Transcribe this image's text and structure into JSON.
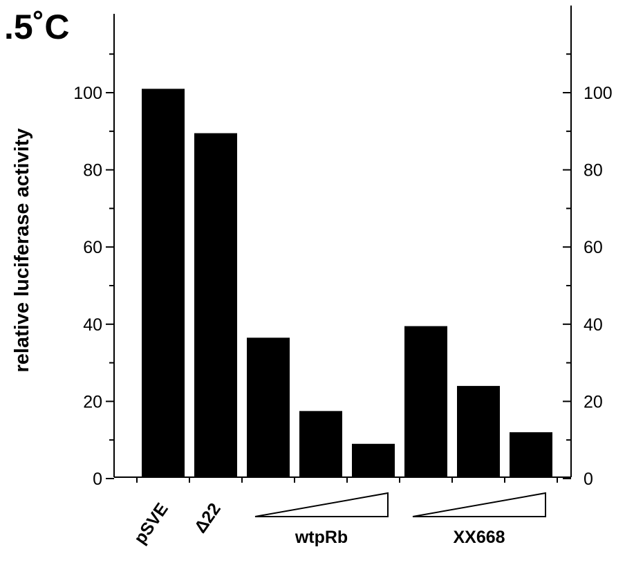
{
  "chart_data": {
    "type": "bar",
    "title": ".5˚C",
    "ylabel": "relative luciferase activity",
    "xlabel": "",
    "ylim": [
      0,
      100
    ],
    "yticks": [
      0,
      20,
      40,
      60,
      80,
      100
    ],
    "right_axis": true,
    "grid": false,
    "categories": [
      "pSVE",
      "Δ22",
      "",
      "",
      "",
      "",
      "",
      ""
    ],
    "groups": [
      {
        "label": "wtpRb",
        "category_indices": [
          2,
          3,
          4
        ]
      },
      {
        "label": "XX668",
        "category_indices": [
          5,
          6,
          7
        ]
      }
    ],
    "values": [
      101,
      89.5,
      36.5,
      17.5,
      9,
      39.5,
      24,
      12
    ]
  }
}
